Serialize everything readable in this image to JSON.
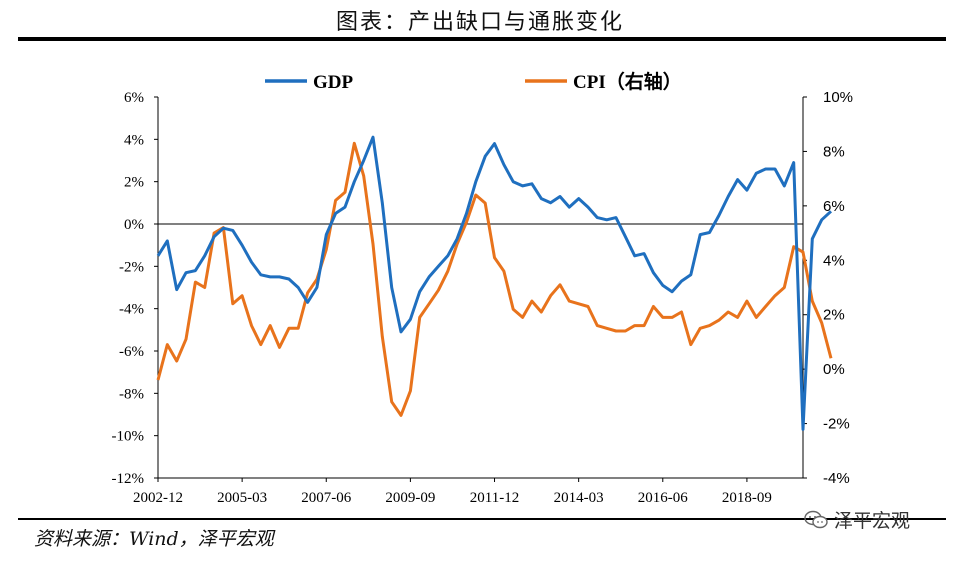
{
  "header": {
    "title": "图表：产出缺口与通胀变化"
  },
  "footer": {
    "source": "资料来源：Wind，泽平宏观",
    "logo_text": "泽平宏观"
  },
  "colors": {
    "gdp": "#1F6FBF",
    "cpi": "#E8731C"
  },
  "chart_data": {
    "type": "line",
    "x_start": "2002-12",
    "x_end": "2020-03",
    "x_ticks": [
      "2002-12",
      "2005-03",
      "2007-06",
      "2009-09",
      "2011-12",
      "2014-03",
      "2016-06",
      "2018-09"
    ],
    "y_left": {
      "range": [
        -12,
        6
      ],
      "ticks": [
        "6%",
        "4%",
        "2%",
        "0%",
        "-2%",
        "-4%",
        "-6%",
        "-8%",
        "-10%",
        "-12%"
      ]
    },
    "y_right": {
      "range": [
        -4,
        10
      ],
      "ticks": [
        "10%",
        "8%",
        "6%",
        "4%",
        "2%",
        "0%",
        "-2%",
        "-4%"
      ]
    },
    "legend": [
      "GDP",
      "CPI（右轴）"
    ],
    "series": [
      {
        "name": "GDP",
        "axis": "left",
        "points": [
          [
            "2002-12",
            -1.5
          ],
          [
            "2003-03",
            -0.8
          ],
          [
            "2003-06",
            -3.1
          ],
          [
            "2003-09",
            -2.3
          ],
          [
            "2003-12",
            -2.2
          ],
          [
            "2004-03",
            -1.5
          ],
          [
            "2004-06",
            -0.6
          ],
          [
            "2004-09",
            -0.2
          ],
          [
            "2004-12",
            -0.3
          ],
          [
            "2005-03",
            -1.0
          ],
          [
            "2005-06",
            -1.8
          ],
          [
            "2005-09",
            -2.4
          ],
          [
            "2005-12",
            -2.5
          ],
          [
            "2006-03",
            -2.5
          ],
          [
            "2006-06",
            -2.6
          ],
          [
            "2006-09",
            -3.0
          ],
          [
            "2006-12",
            -3.7
          ],
          [
            "2007-03",
            -3.0
          ],
          [
            "2007-06",
            -0.5
          ],
          [
            "2007-09",
            0.5
          ],
          [
            "2007-12",
            0.8
          ],
          [
            "2008-03",
            2.0
          ],
          [
            "2008-06",
            3.0
          ],
          [
            "2008-09",
            4.1
          ],
          [
            "2008-12",
            1.0
          ],
          [
            "2009-03",
            -3.0
          ],
          [
            "2009-06",
            -5.1
          ],
          [
            "2009-09",
            -4.5
          ],
          [
            "2009-12",
            -3.2
          ],
          [
            "2010-03",
            -2.5
          ],
          [
            "2010-06",
            -2.0
          ],
          [
            "2010-09",
            -1.5
          ],
          [
            "2010-12",
            -0.7
          ],
          [
            "2011-03",
            0.5
          ],
          [
            "2011-06",
            2.0
          ],
          [
            "2011-09",
            3.2
          ],
          [
            "2011-12",
            3.8
          ],
          [
            "2012-03",
            2.8
          ],
          [
            "2012-06",
            2.0
          ],
          [
            "2012-09",
            1.8
          ],
          [
            "2012-12",
            1.9
          ],
          [
            "2013-03",
            1.2
          ],
          [
            "2013-06",
            1.0
          ],
          [
            "2013-09",
            1.3
          ],
          [
            "2013-12",
            0.8
          ],
          [
            "2014-03",
            1.2
          ],
          [
            "2014-06",
            0.8
          ],
          [
            "2014-09",
            0.3
          ],
          [
            "2014-12",
            0.2
          ],
          [
            "2015-03",
            0.3
          ],
          [
            "2015-06",
            -0.6
          ],
          [
            "2015-09",
            -1.5
          ],
          [
            "2015-12",
            -1.4
          ],
          [
            "2016-03",
            -2.3
          ],
          [
            "2016-06",
            -2.9
          ],
          [
            "2016-09",
            -3.2
          ],
          [
            "2016-12",
            -2.7
          ],
          [
            "2017-03",
            -2.4
          ],
          [
            "2017-06",
            -0.5
          ],
          [
            "2017-09",
            -0.4
          ],
          [
            "2017-12",
            0.4
          ],
          [
            "2018-03",
            1.3
          ],
          [
            "2018-06",
            2.1
          ],
          [
            "2018-09",
            1.6
          ],
          [
            "2018-12",
            2.4
          ],
          [
            "2019-03",
            2.6
          ],
          [
            "2019-06",
            2.6
          ],
          [
            "2019-09",
            1.8
          ],
          [
            "2019-12",
            2.9
          ],
          [
            "2020-03",
            -9.7
          ],
          [
            "2020-06",
            -0.7
          ],
          [
            "2020-09",
            0.2
          ],
          [
            "2020-12",
            0.6
          ]
        ]
      },
      {
        "name": "CPI（右轴）",
        "axis": "right",
        "points": [
          [
            "2002-12",
            -0.4
          ],
          [
            "2003-03",
            0.9
          ],
          [
            "2003-06",
            0.3
          ],
          [
            "2003-09",
            1.1
          ],
          [
            "2003-12",
            3.2
          ],
          [
            "2004-03",
            3.0
          ],
          [
            "2004-06",
            5.0
          ],
          [
            "2004-09",
            5.2
          ],
          [
            "2004-12",
            2.4
          ],
          [
            "2005-03",
            2.7
          ],
          [
            "2005-06",
            1.6
          ],
          [
            "2005-09",
            0.9
          ],
          [
            "2005-12",
            1.6
          ],
          [
            "2006-03",
            0.8
          ],
          [
            "2006-06",
            1.5
          ],
          [
            "2006-09",
            1.5
          ],
          [
            "2006-12",
            2.8
          ],
          [
            "2007-03",
            3.3
          ],
          [
            "2007-06",
            4.4
          ],
          [
            "2007-09",
            6.2
          ],
          [
            "2007-12",
            6.5
          ],
          [
            "2008-03",
            8.3
          ],
          [
            "2008-06",
            7.1
          ],
          [
            "2008-09",
            4.6
          ],
          [
            "2008-12",
            1.2
          ],
          [
            "2009-03",
            -1.2
          ],
          [
            "2009-06",
            -1.7
          ],
          [
            "2009-09",
            -0.8
          ],
          [
            "2009-12",
            1.9
          ],
          [
            "2010-03",
            2.4
          ],
          [
            "2010-06",
            2.9
          ],
          [
            "2010-09",
            3.6
          ],
          [
            "2010-12",
            4.6
          ],
          [
            "2011-03",
            5.4
          ],
          [
            "2011-06",
            6.4
          ],
          [
            "2011-09",
            6.1
          ],
          [
            "2011-12",
            4.1
          ],
          [
            "2012-03",
            3.6
          ],
          [
            "2012-06",
            2.2
          ],
          [
            "2012-09",
            1.9
          ],
          [
            "2012-12",
            2.5
          ],
          [
            "2013-03",
            2.1
          ],
          [
            "2013-06",
            2.7
          ],
          [
            "2013-09",
            3.1
          ],
          [
            "2013-12",
            2.5
          ],
          [
            "2014-03",
            2.4
          ],
          [
            "2014-06",
            2.3
          ],
          [
            "2014-09",
            1.6
          ],
          [
            "2014-12",
            1.5
          ],
          [
            "2015-03",
            1.4
          ],
          [
            "2015-06",
            1.4
          ],
          [
            "2015-09",
            1.6
          ],
          [
            "2015-12",
            1.6
          ],
          [
            "2016-03",
            2.3
          ],
          [
            "2016-06",
            1.9
          ],
          [
            "2016-09",
            1.9
          ],
          [
            "2016-12",
            2.1
          ],
          [
            "2017-03",
            0.9
          ],
          [
            "2017-06",
            1.5
          ],
          [
            "2017-09",
            1.6
          ],
          [
            "2017-12",
            1.8
          ],
          [
            "2018-03",
            2.1
          ],
          [
            "2018-06",
            1.9
          ],
          [
            "2018-09",
            2.5
          ],
          [
            "2018-12",
            1.9
          ],
          [
            "2019-03",
            2.3
          ],
          [
            "2019-06",
            2.7
          ],
          [
            "2019-09",
            3.0
          ],
          [
            "2019-12",
            4.5
          ],
          [
            "2020-03",
            4.3
          ],
          [
            "2020-06",
            2.5
          ],
          [
            "2020-09",
            1.7
          ],
          [
            "2020-12",
            0.4
          ]
        ]
      }
    ]
  }
}
